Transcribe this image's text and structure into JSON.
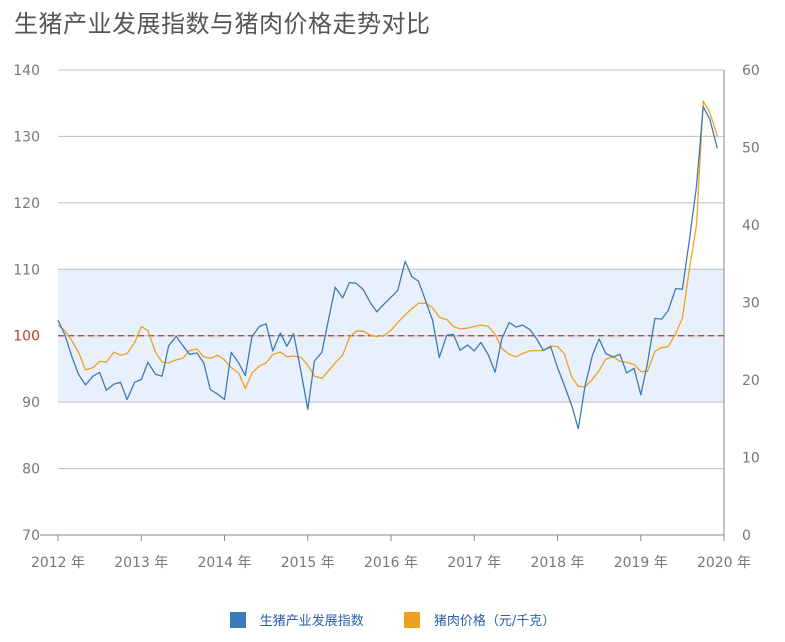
{
  "title": "生猪产业发展指数与猪肉价格走势对比",
  "colors": {
    "index": "#3d7ab8",
    "price": "#f0a020",
    "band": "#e8f1fb",
    "refline": "#c0392b",
    "grid": "#bfbfbf",
    "tick": "#777777"
  },
  "chart_data": {
    "type": "line",
    "title": "生猪产业发展指数与猪肉价格走势对比",
    "x_ticks": [
      "2012 年",
      "2013 年",
      "2014 年",
      "2015 年",
      "2016 年",
      "2017 年",
      "2018 年",
      "2019 年",
      "2020 年"
    ],
    "x_range": [
      2012,
      2020
    ],
    "left_axis": {
      "ylim": [
        70,
        140
      ],
      "ticks": [
        70,
        80,
        90,
        100,
        110,
        120,
        130,
        140
      ]
    },
    "right_axis": {
      "ylim": [
        0,
        60
      ],
      "ticks": [
        0,
        10,
        20,
        30,
        40,
        50,
        60
      ]
    },
    "band": [
      90,
      110
    ],
    "reference_line": 100,
    "series": [
      {
        "name": "生猪产业发展指数",
        "axis": "left",
        "points": [
          [
            2012.0,
            102.3
          ],
          [
            2012.08,
            100.2
          ],
          [
            2012.17,
            96.7
          ],
          [
            2012.25,
            94.1
          ],
          [
            2012.33,
            92.6
          ],
          [
            2012.42,
            93.9
          ],
          [
            2012.5,
            94.5
          ],
          [
            2012.58,
            91.8
          ],
          [
            2012.67,
            92.7
          ],
          [
            2012.75,
            93.0
          ],
          [
            2012.83,
            90.4
          ],
          [
            2012.92,
            93.0
          ],
          [
            2013.0,
            93.4
          ],
          [
            2013.08,
            96.0
          ],
          [
            2013.17,
            94.2
          ],
          [
            2013.25,
            93.9
          ],
          [
            2013.33,
            98.5
          ],
          [
            2013.42,
            99.9
          ],
          [
            2013.5,
            98.5
          ],
          [
            2013.58,
            97.2
          ],
          [
            2013.67,
            97.4
          ],
          [
            2013.75,
            95.9
          ],
          [
            2013.83,
            91.9
          ],
          [
            2013.92,
            91.2
          ],
          [
            2014.0,
            90.4
          ],
          [
            2014.08,
            97.5
          ],
          [
            2014.17,
            95.9
          ],
          [
            2014.25,
            94.0
          ],
          [
            2014.33,
            99.9
          ],
          [
            2014.42,
            101.4
          ],
          [
            2014.5,
            101.8
          ],
          [
            2014.58,
            97.7
          ],
          [
            2014.67,
            100.4
          ],
          [
            2014.75,
            98.4
          ],
          [
            2014.83,
            100.3
          ],
          [
            2014.92,
            94.5
          ],
          [
            2015.0,
            88.9
          ],
          [
            2015.08,
            96.2
          ],
          [
            2015.17,
            97.5
          ],
          [
            2015.25,
            102.5
          ],
          [
            2015.33,
            107.3
          ],
          [
            2015.42,
            105.7
          ],
          [
            2015.5,
            108.0
          ],
          [
            2015.58,
            107.9
          ],
          [
            2015.67,
            106.9
          ],
          [
            2015.75,
            105.0
          ],
          [
            2015.83,
            103.6
          ],
          [
            2015.92,
            104.8
          ],
          [
            2016.0,
            105.8
          ],
          [
            2016.08,
            106.8
          ],
          [
            2016.17,
            111.2
          ],
          [
            2016.25,
            108.9
          ],
          [
            2016.33,
            108.2
          ],
          [
            2016.42,
            105.1
          ],
          [
            2016.5,
            102.3
          ],
          [
            2016.58,
            96.7
          ],
          [
            2016.67,
            100.1
          ],
          [
            2016.75,
            100.2
          ],
          [
            2016.83,
            97.8
          ],
          [
            2016.92,
            98.6
          ],
          [
            2017.0,
            97.7
          ],
          [
            2017.08,
            99.0
          ],
          [
            2017.17,
            97.1
          ],
          [
            2017.25,
            94.5
          ],
          [
            2017.33,
            99.5
          ],
          [
            2017.42,
            102.0
          ],
          [
            2017.5,
            101.3
          ],
          [
            2017.58,
            101.6
          ],
          [
            2017.67,
            100.9
          ],
          [
            2017.75,
            99.5
          ],
          [
            2017.83,
            97.8
          ],
          [
            2017.92,
            98.3
          ],
          [
            2018.0,
            95.2
          ],
          [
            2018.08,
            92.6
          ],
          [
            2018.17,
            89.5
          ],
          [
            2018.25,
            86.0
          ],
          [
            2018.33,
            92.4
          ],
          [
            2018.42,
            97.1
          ],
          [
            2018.5,
            99.5
          ],
          [
            2018.58,
            97.3
          ],
          [
            2018.67,
            96.8
          ],
          [
            2018.75,
            97.2
          ],
          [
            2018.83,
            94.4
          ],
          [
            2018.92,
            95.1
          ],
          [
            2019.0,
            91.1
          ],
          [
            2019.08,
            95.8
          ],
          [
            2019.17,
            102.6
          ],
          [
            2019.25,
            102.5
          ],
          [
            2019.33,
            103.8
          ],
          [
            2019.42,
            107.1
          ],
          [
            2019.5,
            107.0
          ],
          [
            2019.58,
            114.0
          ],
          [
            2019.67,
            122.5
          ],
          [
            2019.75,
            134.5
          ],
          [
            2019.83,
            132.6
          ],
          [
            2019.92,
            128.2
          ]
        ]
      },
      {
        "name": "猪肉价格（元/千克）",
        "axis": "right",
        "points": [
          [
            2012.0,
            27.1
          ],
          [
            2012.08,
            26.4
          ],
          [
            2012.17,
            25.0
          ],
          [
            2012.25,
            23.5
          ],
          [
            2012.33,
            21.3
          ],
          [
            2012.42,
            21.6
          ],
          [
            2012.5,
            22.4
          ],
          [
            2012.58,
            22.3
          ],
          [
            2012.67,
            23.6
          ],
          [
            2012.75,
            23.2
          ],
          [
            2012.83,
            23.4
          ],
          [
            2012.92,
            24.8
          ],
          [
            2013.0,
            26.9
          ],
          [
            2013.08,
            26.4
          ],
          [
            2013.17,
            23.6
          ],
          [
            2013.25,
            22.3
          ],
          [
            2013.33,
            22.2
          ],
          [
            2013.42,
            22.6
          ],
          [
            2013.5,
            22.8
          ],
          [
            2013.58,
            23.8
          ],
          [
            2013.67,
            24.0
          ],
          [
            2013.75,
            23.0
          ],
          [
            2013.83,
            22.8
          ],
          [
            2013.92,
            23.2
          ],
          [
            2014.0,
            22.6
          ],
          [
            2014.08,
            21.6
          ],
          [
            2014.17,
            20.9
          ],
          [
            2014.25,
            18.9
          ],
          [
            2014.33,
            20.9
          ],
          [
            2014.42,
            21.8
          ],
          [
            2014.5,
            22.2
          ],
          [
            2014.58,
            23.3
          ],
          [
            2014.67,
            23.6
          ],
          [
            2014.75,
            23.0
          ],
          [
            2014.83,
            23.1
          ],
          [
            2014.92,
            22.9
          ],
          [
            2015.0,
            21.9
          ],
          [
            2015.08,
            20.5
          ],
          [
            2015.17,
            20.2
          ],
          [
            2015.25,
            21.2
          ],
          [
            2015.33,
            22.2
          ],
          [
            2015.42,
            23.2
          ],
          [
            2015.5,
            25.5
          ],
          [
            2015.58,
            26.3
          ],
          [
            2015.67,
            26.3
          ],
          [
            2015.75,
            25.8
          ],
          [
            2015.83,
            25.6
          ],
          [
            2015.92,
            25.8
          ],
          [
            2016.0,
            26.4
          ],
          [
            2016.08,
            27.4
          ],
          [
            2016.17,
            28.4
          ],
          [
            2016.25,
            29.2
          ],
          [
            2016.33,
            29.9
          ],
          [
            2016.42,
            29.9
          ],
          [
            2016.5,
            29.3
          ],
          [
            2016.58,
            28.1
          ],
          [
            2016.67,
            27.8
          ],
          [
            2016.75,
            26.9
          ],
          [
            2016.83,
            26.6
          ],
          [
            2016.92,
            26.7
          ],
          [
            2017.0,
            26.9
          ],
          [
            2017.08,
            27.1
          ],
          [
            2017.17,
            26.9
          ],
          [
            2017.25,
            25.9
          ],
          [
            2017.33,
            24.1
          ],
          [
            2017.42,
            23.3
          ],
          [
            2017.5,
            23.0
          ],
          [
            2017.58,
            23.4
          ],
          [
            2017.67,
            23.8
          ],
          [
            2017.75,
            23.8
          ],
          [
            2017.83,
            23.8
          ],
          [
            2017.92,
            24.4
          ],
          [
            2018.0,
            24.3
          ],
          [
            2018.08,
            23.4
          ],
          [
            2018.17,
            20.4
          ],
          [
            2018.25,
            19.2
          ],
          [
            2018.33,
            19.1
          ],
          [
            2018.42,
            20.1
          ],
          [
            2018.5,
            21.2
          ],
          [
            2018.58,
            22.7
          ],
          [
            2018.67,
            23.0
          ],
          [
            2018.75,
            22.4
          ],
          [
            2018.83,
            22.3
          ],
          [
            2018.92,
            22.0
          ],
          [
            2019.0,
            21.1
          ],
          [
            2019.08,
            21.1
          ],
          [
            2019.17,
            23.7
          ],
          [
            2019.25,
            24.2
          ],
          [
            2019.33,
            24.3
          ],
          [
            2019.42,
            26.0
          ],
          [
            2019.5,
            28.0
          ],
          [
            2019.58,
            34.0
          ],
          [
            2019.67,
            40.0
          ],
          [
            2019.75,
            56.0
          ],
          [
            2019.83,
            54.5
          ],
          [
            2019.92,
            51.5
          ]
        ]
      }
    ],
    "grid": true,
    "legend_position": "bottom"
  },
  "legend": [
    {
      "label": "生猪产业发展指数",
      "color": "#3d7ab8"
    },
    {
      "label": "猪肉价格（元/千克）",
      "color": "#f0a020"
    }
  ]
}
